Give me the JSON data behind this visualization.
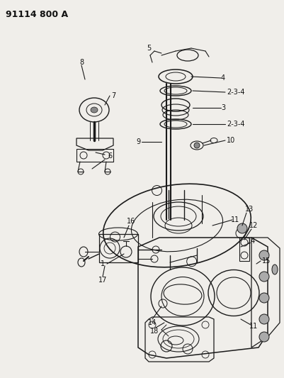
{
  "title": "91114 800 A",
  "bg_color": "#f0eeea",
  "fig_width": 4.01,
  "fig_height": 5.33,
  "dpi": 100,
  "title_fontsize": 9,
  "title_fontweight": "bold",
  "lc": "#1a1a1a",
  "label_fontsize": 7.0,
  "label_color": "#111111"
}
